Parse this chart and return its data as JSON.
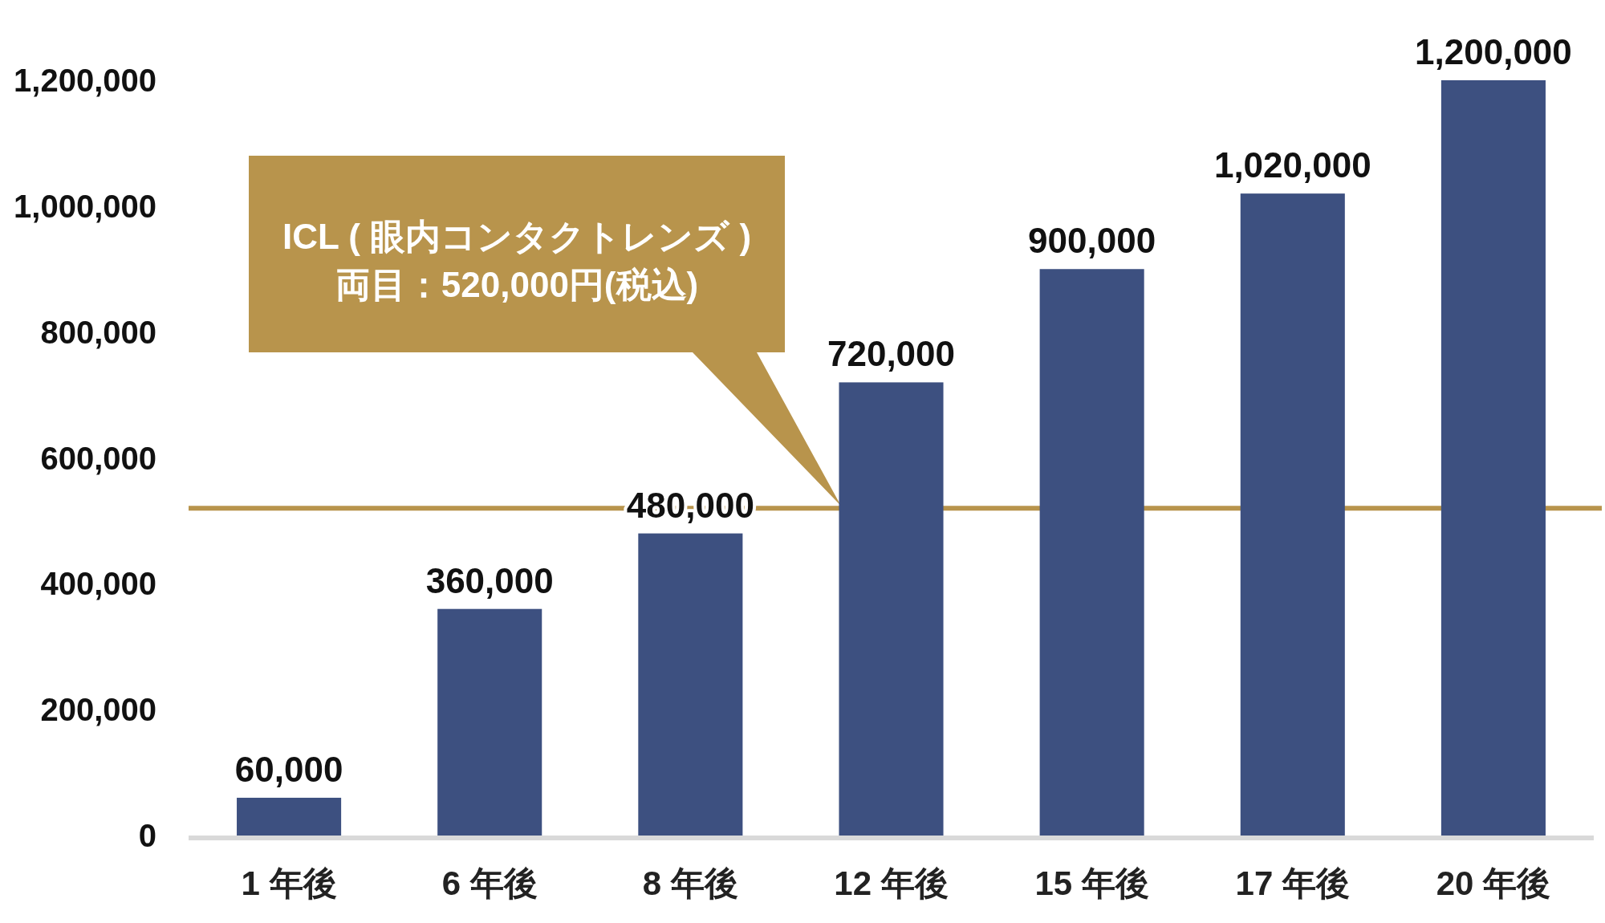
{
  "chart_data": {
    "type": "bar",
    "categories": [
      "1 年後",
      "6 年後",
      "8 年後",
      "12 年後",
      "15 年後",
      "17 年後",
      "20 年後"
    ],
    "values": [
      60000,
      360000,
      480000,
      720000,
      900000,
      1020000,
      1200000
    ],
    "value_labels": [
      "60,000",
      "360,000",
      "480,000",
      "720,000",
      "900,000",
      "1,020,000",
      "1,200,000"
    ],
    "color": "#3d5080",
    "ylim": [
      0,
      1200000
    ],
    "yticks": [
      {
        "value": 0,
        "label": "0"
      },
      {
        "value": 200000,
        "label": "200,000"
      },
      {
        "value": 400000,
        "label": "400,000"
      },
      {
        "value": 600000,
        "label": "600,000"
      },
      {
        "value": 800000,
        "label": "800,000"
      },
      {
        "value": 1000000,
        "label": "1,000,000"
      },
      {
        "value": 1200000,
        "label": "1,200,000"
      }
    ],
    "grid": false,
    "annotations": [
      "ICL ( 眼内コンタクトレンズ )\n両目：520,000円(税込)"
    ],
    "ref_lines": [
      {
        "axis": "y",
        "value": 520000,
        "color": "#b8944c"
      }
    ]
  }
}
